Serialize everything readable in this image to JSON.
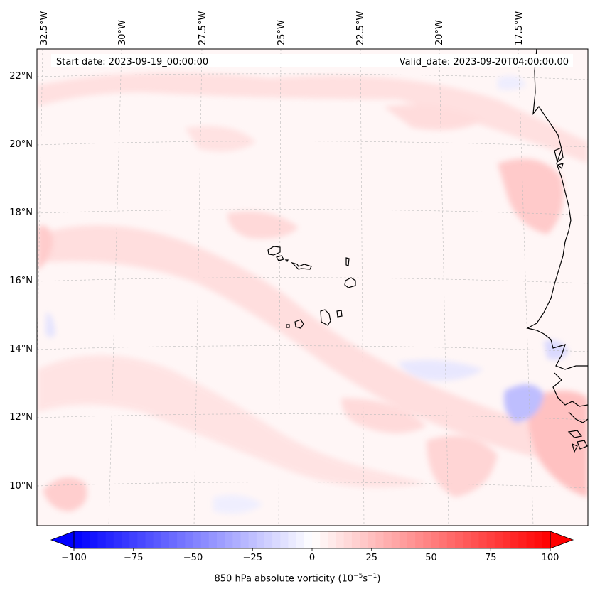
{
  "header": {
    "start_date": "Start date: 2023-09-19_00:00:00",
    "valid_date": "Valid_date: 2023-09-20T04:00:00.00"
  },
  "map": {
    "lon_labels": [
      "32.5°W",
      "30°W",
      "27.5°W",
      "25°W",
      "22.5°W",
      "20°W",
      "17.5°W"
    ],
    "lat_labels": [
      "22°N",
      "20°N",
      "18°N",
      "16°N",
      "14°N",
      "12°N",
      "10°N"
    ],
    "field": "850 hPa absolute vorticity",
    "colormap": "bwr",
    "colors": {
      "negative": "#0000ff",
      "zero": "#ffffff",
      "positive": "#ff0000",
      "coastline": "#000000"
    }
  },
  "colorbar": {
    "ticks": [
      "−100",
      "−75",
      "−50",
      "−25",
      "0",
      "25",
      "50",
      "75",
      "100"
    ],
    "label_main": "850 hPa absolute vorticity (10",
    "label_exp1": "−5",
    "label_mid": "s",
    "label_exp2": "−1",
    "label_end": ")",
    "range": [
      -100,
      100
    ],
    "levels": 60
  }
}
